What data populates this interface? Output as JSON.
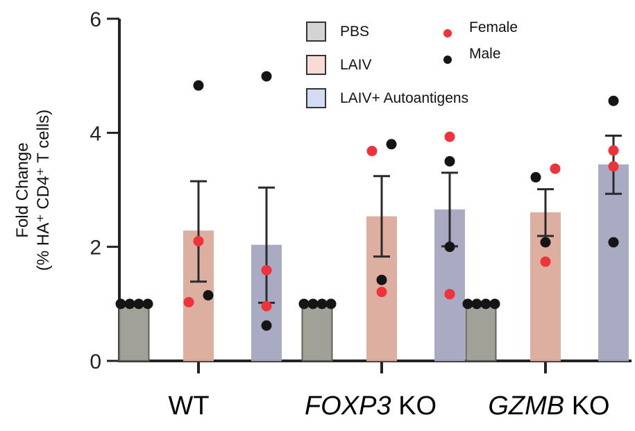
{
  "chart_data": {
    "type": "bar",
    "title": "",
    "xlabel": "",
    "ylabel_line1": "Fold Change",
    "ylabel_line2": "(% HA⁺ CD4⁺ T cells)",
    "ylim": [
      0,
      6
    ],
    "yticks": [
      0,
      2,
      4,
      6
    ],
    "grid": false,
    "categories": [
      "WT",
      "FOXP3 KO",
      "GZMB KO"
    ],
    "category_labels": [
      {
        "italic": "",
        "plain": "WT"
      },
      {
        "italic": "FOXP3",
        "plain": " KO"
      },
      {
        "italic": "GZMB",
        "plain": " KO"
      }
    ],
    "legend_position": "top-center",
    "series": [
      {
        "name": "PBS",
        "color": "#9c9d92",
        "legend_color": "#d3d3d3",
        "values": [
          1.0,
          1.0,
          1.0
        ],
        "error_low": [
          1.0,
          1.0,
          1.0
        ],
        "error_high": [
          1.0,
          1.0,
          1.0
        ],
        "points": [
          [
            {
              "y": 1.0,
              "sex": "Male"
            },
            {
              "y": 1.0,
              "sex": "Male"
            },
            {
              "y": 1.0,
              "sex": "Male"
            },
            {
              "y": 1.0,
              "sex": "Male"
            }
          ],
          [
            {
              "y": 1.0,
              "sex": "Male"
            },
            {
              "y": 1.0,
              "sex": "Male"
            },
            {
              "y": 1.0,
              "sex": "Male"
            },
            {
              "y": 1.0,
              "sex": "Male"
            }
          ],
          [
            {
              "y": 1.0,
              "sex": "Male"
            },
            {
              "y": 1.0,
              "sex": "Male"
            },
            {
              "y": 1.0,
              "sex": "Male"
            },
            {
              "y": 1.0,
              "sex": "Male"
            }
          ]
        ]
      },
      {
        "name": "LAIV",
        "color": "#dcab9b",
        "legend_color": "#f7dcd6",
        "values": [
          2.28,
          2.53,
          2.6
        ],
        "error_low": [
          1.39,
          1.83,
          2.19
        ],
        "error_high": [
          3.15,
          3.24,
          3.01
        ],
        "points": [
          [
            {
              "y": 4.83,
              "sex": "Male"
            },
            {
              "y": 2.1,
              "sex": "Female"
            },
            {
              "y": 1.15,
              "sex": "Male"
            },
            {
              "y": 1.03,
              "sex": "Female"
            }
          ],
          [
            {
              "y": 3.8,
              "sex": "Male"
            },
            {
              "y": 3.68,
              "sex": "Female"
            },
            {
              "y": 1.42,
              "sex": "Male"
            },
            {
              "y": 1.21,
              "sex": "Female"
            }
          ],
          [
            {
              "y": 3.37,
              "sex": "Female"
            },
            {
              "y": 3.22,
              "sex": "Male"
            },
            {
              "y": 2.08,
              "sex": "Male"
            },
            {
              "y": 1.74,
              "sex": "Female"
            }
          ]
        ]
      },
      {
        "name": "LAIV+ Autoantigens",
        "color": "#a5a7bf",
        "legend_color": "#d2dcf3",
        "values": [
          2.03,
          2.65,
          3.44
        ],
        "error_low": [
          1.02,
          2.01,
          2.93
        ],
        "error_high": [
          3.04,
          3.3,
          3.95
        ],
        "points": [
          [
            {
              "y": 4.99,
              "sex": "Male"
            },
            {
              "y": 1.59,
              "sex": "Female"
            },
            {
              "y": 0.96,
              "sex": "Female"
            },
            {
              "y": 0.62,
              "sex": "Male"
            }
          ],
          [
            {
              "y": 3.93,
              "sex": "Female"
            },
            {
              "y": 3.5,
              "sex": "Male"
            },
            {
              "y": 2.0,
              "sex": "Male"
            },
            {
              "y": 1.17,
              "sex": "Female"
            }
          ],
          [
            {
              "y": 4.56,
              "sex": "Male"
            },
            {
              "y": 3.69,
              "sex": "Female"
            },
            {
              "y": 3.41,
              "sex": "Female"
            },
            {
              "y": 2.08,
              "sex": "Male"
            }
          ]
        ]
      }
    ],
    "point_legend": [
      {
        "name": "Female",
        "color": "#f0323a"
      },
      {
        "name": "Male",
        "color": "#151515"
      }
    ]
  }
}
